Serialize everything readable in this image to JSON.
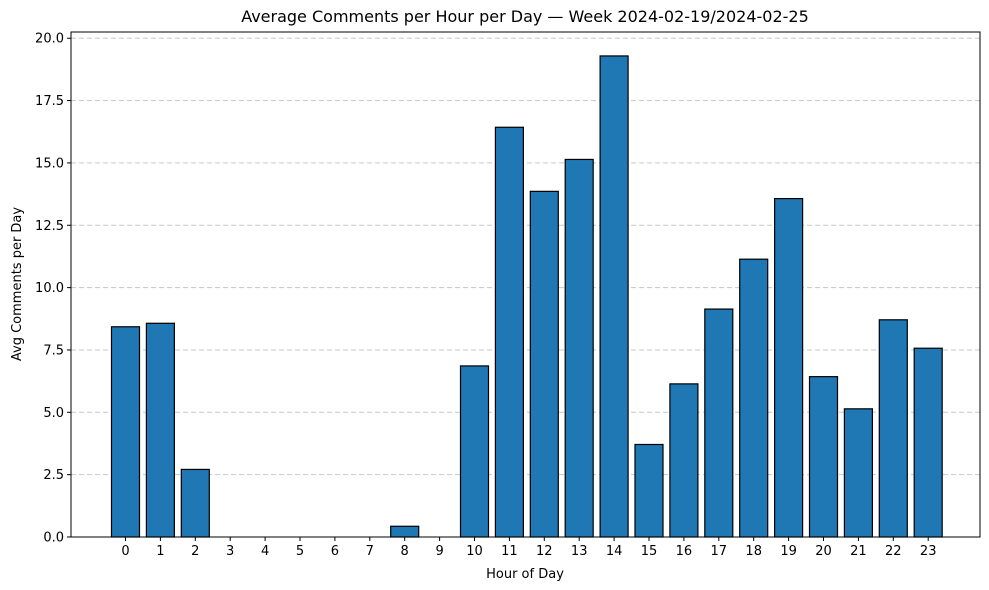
{
  "chart_data": {
    "type": "bar",
    "title": "Average Comments per Hour per Day — Week 2024-02-19/2024-02-25",
    "xlabel": "Hour of Day",
    "ylabel": "Avg Comments per Day",
    "categories": [
      "0",
      "1",
      "2",
      "3",
      "4",
      "5",
      "6",
      "7",
      "8",
      "9",
      "10",
      "11",
      "12",
      "13",
      "14",
      "15",
      "16",
      "17",
      "18",
      "19",
      "20",
      "21",
      "22",
      "23"
    ],
    "values": [
      8.43,
      8.57,
      2.71,
      0,
      0,
      0,
      0,
      0,
      0.43,
      0,
      6.86,
      16.43,
      13.86,
      15.14,
      19.29,
      3.71,
      6.14,
      9.14,
      11.14,
      13.57,
      6.43,
      5.14,
      8.71,
      7.57
    ],
    "ylim": [
      0,
      20.25
    ],
    "yticks": [
      0.0,
      2.5,
      5.0,
      7.5,
      10.0,
      12.5,
      15.0,
      17.5,
      20.0
    ],
    "ytick_labels": [
      "0.0",
      "2.5",
      "5.0",
      "7.5",
      "10.0",
      "12.5",
      "15.0",
      "17.5",
      "20.0"
    ],
    "grid": "y-dashed",
    "bar_color": "#1f77b4",
    "bar_edge_color": "#000000",
    "grid_color": "#c8c8c8"
  }
}
